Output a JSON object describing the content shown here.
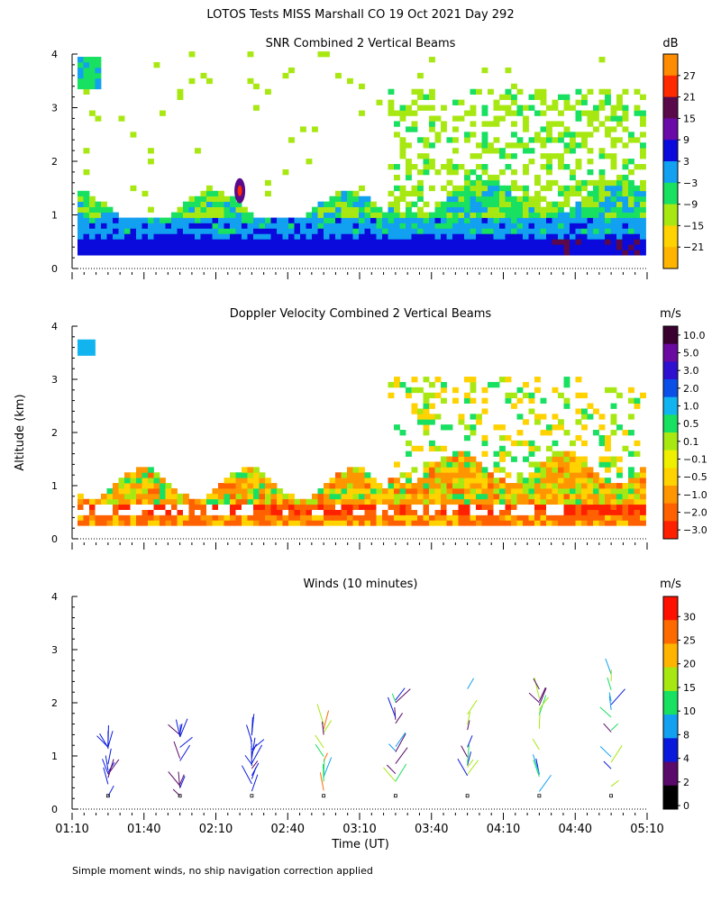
{
  "main_title": "LOTOS Tests MISS Marshall CO  19 Oct 2021 Day 292",
  "ylabel": "Altitude (km)",
  "xlabel": "Time (UT)",
  "footnote": "Simple moment winds, no ship navigation correction applied",
  "x_ticks": [
    "01:10",
    "01:40",
    "02:10",
    "02:40",
    "03:10",
    "03:40",
    "04:10",
    "04:40",
    "05:10"
  ],
  "y_ticks": [
    "0",
    "1",
    "2",
    "3",
    "4"
  ],
  "chart_data": [
    {
      "type": "heatmap",
      "title": "SNR Combined 2 Vertical Beams",
      "units": "dB",
      "xlim_minutes": [
        70,
        310
      ],
      "ylim_km": [
        0,
        4
      ],
      "colorbar": {
        "labels": [
          "27",
          "21",
          "15",
          "9",
          "3",
          "−3",
          "−9",
          "−15",
          "−21"
        ],
        "colors": [
          "#ff8c00",
          "#ff2a00",
          "#5a0a4a",
          "#6a0aa8",
          "#0a0adc",
          "#12a0f0",
          "#18e060",
          "#a8e812",
          "#ffd200",
          "#ffb400"
        ]
      }
    },
    {
      "type": "heatmap",
      "title": "Doppler Velocity Combined 2 Vertical Beams",
      "units": "m/s",
      "xlim_minutes": [
        70,
        310
      ],
      "ylim_km": [
        0,
        4
      ],
      "colorbar": {
        "labels": [
          "10.0",
          "5.0",
          "3.0",
          "2.0",
          "1.0",
          "0.5",
          "0.1",
          "−0.1",
          "−0.5",
          "−1.0",
          "−2.0",
          "−3.0"
        ],
        "colors": [
          "#3a0030",
          "#6a0aa0",
          "#3010d0",
          "#0a50e8",
          "#12b4f0",
          "#18e060",
          "#a8e812",
          "#eef000",
          "#ffd200",
          "#ff9600",
          "#ff6000",
          "#ff2000"
        ]
      }
    },
    {
      "type": "wind_barbs",
      "title": "Winds (10 minutes)",
      "units": "m/s",
      "xlim_minutes": [
        70,
        310
      ],
      "ylim_km": [
        0,
        4
      ],
      "profile_times_minutes": [
        85,
        115,
        145,
        175,
        205,
        235,
        265,
        295
      ],
      "colorbar": {
        "labels": [
          "30",
          "25",
          "20",
          "15",
          "10",
          "8",
          "4",
          "2",
          "0"
        ],
        "colors": [
          "#ff1000",
          "#ff6a00",
          "#ffb400",
          "#a8e812",
          "#18e060",
          "#12a0f0",
          "#0a1adc",
          "#5a0a6a",
          "#000000"
        ]
      }
    }
  ]
}
